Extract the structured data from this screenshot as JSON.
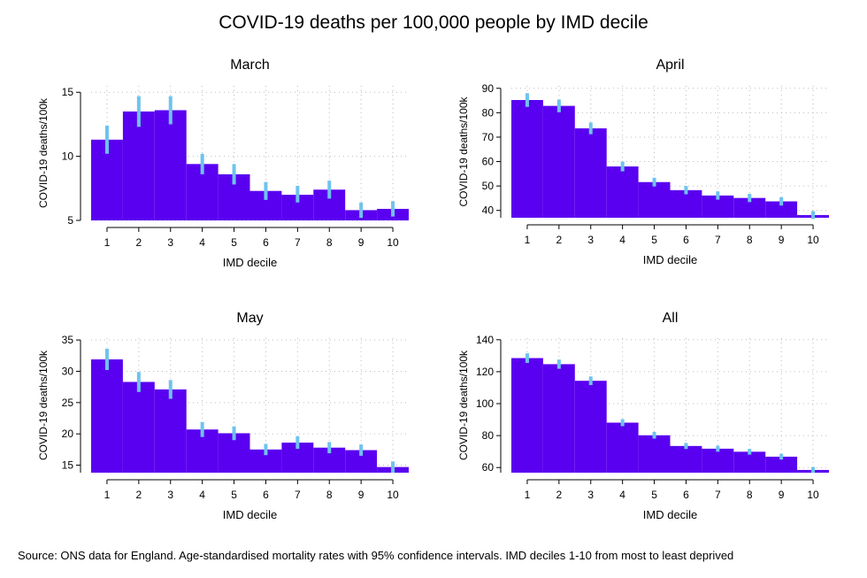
{
  "figure": {
    "title": "COVID-19 deaths per 100,000 people by IMD decile",
    "source": "Source: ONS data for England. Age-standardised mortality rates with 95% confidence intervals. IMD deciles 1-10 from most to least deprived",
    "bar_color": "#5a00f0",
    "error_color": "#6ec3ee"
  },
  "chart_data": [
    {
      "type": "bar",
      "title": "March",
      "xlabel": "IMD decile",
      "ylabel": "COVID-19 deaths/100k",
      "categories": [
        "1",
        "2",
        "3",
        "4",
        "5",
        "6",
        "7",
        "8",
        "9",
        "10"
      ],
      "values": [
        11.3,
        13.5,
        13.6,
        9.4,
        8.6,
        7.3,
        7.0,
        7.4,
        5.8,
        5.9
      ],
      "ci_low": [
        10.2,
        12.3,
        12.5,
        8.6,
        7.8,
        6.6,
        6.4,
        6.7,
        5.2,
        5.3
      ],
      "ci_high": [
        12.4,
        14.7,
        14.7,
        10.2,
        9.4,
        8.0,
        7.7,
        8.1,
        6.4,
        6.5
      ],
      "yticks": [
        5,
        10,
        15
      ],
      "ylim": [
        5,
        15.5
      ],
      "grid": true
    },
    {
      "type": "bar",
      "title": "April",
      "xlabel": "IMD decile",
      "ylabel": "COVID-19 deaths/100k",
      "categories": [
        "1",
        "2",
        "3",
        "4",
        "5",
        "6",
        "7",
        "8",
        "9",
        "10"
      ],
      "values": [
        85.2,
        82.8,
        73.6,
        58.0,
        51.6,
        48.3,
        46.1,
        45.1,
        43.7,
        38.1
      ],
      "ci_low": [
        82.4,
        80.2,
        71.2,
        56.0,
        49.8,
        46.6,
        44.4,
        43.4,
        42.0,
        36.5
      ],
      "ci_high": [
        88.0,
        85.4,
        76.0,
        60.0,
        53.4,
        50.0,
        47.8,
        46.8,
        45.4,
        39.7
      ],
      "yticks": [
        40,
        50,
        60,
        70,
        80,
        90
      ],
      "ylim": [
        37,
        91
      ],
      "grid": true
    },
    {
      "type": "bar",
      "title": "May",
      "xlabel": "IMD decile",
      "ylabel": "COVID-19 deaths/100k",
      "categories": [
        "1",
        "2",
        "3",
        "4",
        "5",
        "6",
        "7",
        "8",
        "9",
        "10"
      ],
      "values": [
        31.9,
        28.3,
        27.1,
        20.7,
        20.1,
        17.5,
        18.6,
        17.8,
        17.4,
        14.7
      ],
      "ci_low": [
        30.2,
        26.7,
        25.6,
        19.5,
        19.0,
        16.6,
        17.6,
        16.9,
        16.5,
        13.8
      ],
      "ci_high": [
        33.6,
        29.9,
        28.6,
        21.9,
        21.2,
        18.4,
        19.6,
        18.7,
        18.3,
        15.6
      ],
      "yticks": [
        15,
        20,
        25,
        30,
        35
      ],
      "ylim": [
        13.8,
        35.3
      ],
      "grid": true
    },
    {
      "type": "bar",
      "title": "All",
      "xlabel": "IMD decile",
      "ylabel": "COVID-19 deaths/100k",
      "categories": [
        "1",
        "2",
        "3",
        "4",
        "5",
        "6",
        "7",
        "8",
        "9",
        "10"
      ],
      "values": [
        128.5,
        124.7,
        114.3,
        88.1,
        80.2,
        73.5,
        71.8,
        69.9,
        66.8,
        58.5
      ],
      "ci_low": [
        125.5,
        121.8,
        111.6,
        85.9,
        78.1,
        71.6,
        69.9,
        68.1,
        65.0,
        56.7
      ],
      "ci_high": [
        131.5,
        127.6,
        117.0,
        90.3,
        82.3,
        75.4,
        73.7,
        71.7,
        68.6,
        60.3
      ],
      "yticks": [
        60,
        80,
        100,
        120,
        140
      ],
      "ylim": [
        56.8,
        141
      ],
      "grid": true
    }
  ]
}
